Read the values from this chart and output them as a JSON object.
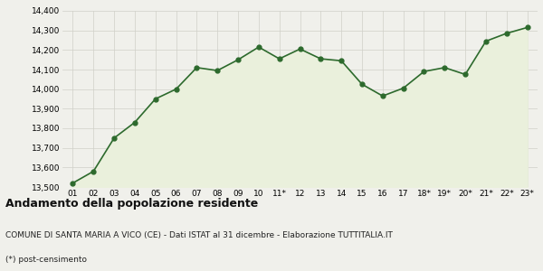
{
  "x_labels": [
    "01",
    "02",
    "03",
    "04",
    "05",
    "06",
    "07",
    "08",
    "09",
    "10",
    "11*",
    "12",
    "13",
    "14",
    "15",
    "16",
    "17",
    "18*",
    "19*",
    "20*",
    "21*",
    "22*",
    "23*"
  ],
  "values": [
    13520,
    13580,
    13750,
    13830,
    13950,
    14000,
    14110,
    14095,
    14150,
    14215,
    14155,
    14205,
    14155,
    14145,
    14025,
    13965,
    14005,
    14090,
    14110,
    14075,
    14245,
    14285,
    14315
  ],
  "line_color": "#2d6a2d",
  "fill_color": "#eaf0dc",
  "marker_color": "#2d6a2d",
  "bg_color": "#f0f0eb",
  "grid_color": "#d0d0c8",
  "ylim": [
    13500,
    14400
  ],
  "yticks": [
    13500,
    13600,
    13700,
    13800,
    13900,
    14000,
    14100,
    14200,
    14300,
    14400
  ],
  "title": "Andamento della popolazione residente",
  "subtitle": "COMUNE DI SANTA MARIA A VICO (CE) - Dati ISTAT al 31 dicembre - Elaborazione TUTTITALIA.IT",
  "footnote": "(*) post-censimento",
  "title_fontsize": 9,
  "subtitle_fontsize": 6.5,
  "footnote_fontsize": 6.5,
  "tick_fontsize": 6.5
}
